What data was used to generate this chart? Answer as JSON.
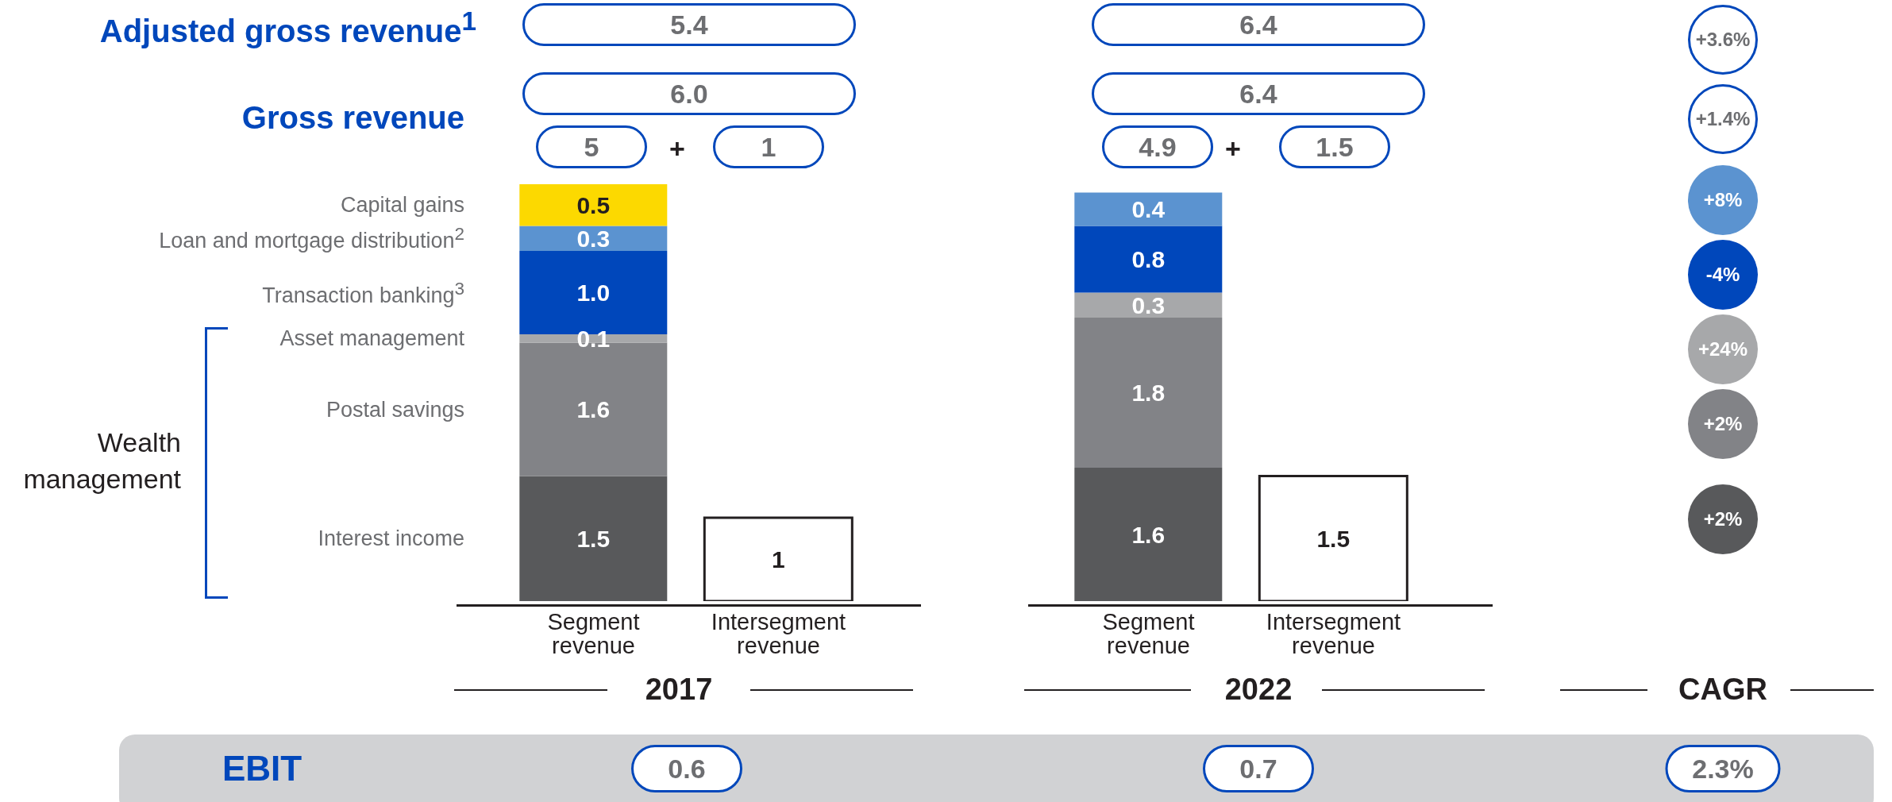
{
  "chart_data": {
    "type": "bar",
    "stacked": true,
    "tick_labels": "x",
    "categories": [
      "Segment revenue",
      "Intersegment revenue",
      "Segment revenue",
      "Intersegment revenue"
    ],
    "series": [
      {
        "name": "Interest income",
        "color": "#58595b",
        "values": [
          1.5,
          null,
          1.6,
          null
        ],
        "value_labels": [
          "1.5",
          null,
          "1.6",
          null
        ]
      },
      {
        "name": "Postal savings",
        "color": "#828387",
        "values": [
          1.6,
          null,
          1.8,
          null
        ],
        "value_labels": [
          "1.6",
          null,
          "1.8",
          null
        ]
      },
      {
        "name": "Asset management",
        "color": "#a7a8aa",
        "values": [
          0.1,
          null,
          0.3,
          null
        ],
        "value_labels": [
          "0.1",
          null,
          "0.3",
          null
        ]
      },
      {
        "name": "Transaction banking$^{3}$",
        "color": "#0047bb",
        "values": [
          1.0,
          null,
          0.8,
          null
        ],
        "value_labels": [
          "1.0",
          null,
          "0.8",
          null
        ]
      },
      {
        "name": "Loan and mortgage distribution$^{2}$",
        "color": "#5b93d0",
        "values": [
          0.3,
          null,
          0.4,
          null
        ],
        "value_labels": [
          "0.3",
          null,
          "0.4",
          null
        ]
      },
      {
        "name": "Capital gains",
        "color": "#fcd900",
        "values": [
          0.5,
          null,
          null,
          null
        ],
        "value_labels": [
          "0.5",
          null,
          null,
          null
        ]
      },
      {
        "color": "#ffffff",
        "values": [
          null,
          1,
          null,
          1.5
        ],
        "value_labels": [
          null,
          "1",
          null,
          "1.5"
        ]
      }
    ],
    "annotations": [
      "Adjusted gross revenue$^{1}$",
      "5.4",
      "6.4",
      "+3.6%",
      "Gross revenue",
      "6.0",
      "6.4",
      "+1.4%",
      "5",
      "+",
      "1",
      "4.9",
      "+",
      "1.5",
      "+8%",
      "-4%",
      "+24%",
      "+2%",
      "+2%",
      "Wealth management",
      "2017",
      "2022",
      "CAGR",
      "EBIT",
      "0.6",
      "0.7",
      "2.3%"
    ]
  }
}
